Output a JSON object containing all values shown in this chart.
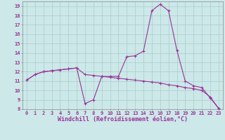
{
  "x": [
    0,
    1,
    2,
    3,
    4,
    5,
    6,
    7,
    8,
    9,
    10,
    11,
    12,
    13,
    14,
    15,
    16,
    17,
    18,
    19,
    20,
    21,
    22,
    23
  ],
  "line1": [
    11.1,
    11.7,
    12.0,
    12.1,
    12.2,
    12.3,
    12.4,
    8.6,
    9.0,
    11.5,
    11.5,
    11.5,
    13.6,
    13.7,
    14.2,
    18.5,
    19.2,
    18.5,
    14.3,
    11.0,
    10.5,
    10.3,
    9.2,
    8.1
  ],
  "line2": [
    11.1,
    11.7,
    12.0,
    12.1,
    12.2,
    12.3,
    12.4,
    11.7,
    11.6,
    11.5,
    11.4,
    11.3,
    11.2,
    11.1,
    11.0,
    10.9,
    10.8,
    10.6,
    10.5,
    10.3,
    10.2,
    10.0,
    9.3,
    8.1
  ],
  "line_color": "#993399",
  "bg_color": "#cce8e8",
  "grid_color": "#aacccc",
  "xlabel": "Windchill (Refroidissement éolien,°C)",
  "ylim_min": 8,
  "ylim_max": 19.5,
  "xlim_min": -0.5,
  "xlim_max": 23.5,
  "yticks": [
    8,
    9,
    10,
    11,
    12,
    13,
    14,
    15,
    16,
    17,
    18,
    19
  ],
  "xticks": [
    0,
    1,
    2,
    3,
    4,
    5,
    6,
    7,
    8,
    9,
    10,
    11,
    12,
    13,
    14,
    15,
    16,
    17,
    18,
    19,
    20,
    21,
    22,
    23
  ],
  "marker": "+",
  "linewidth": 0.8,
  "markersize": 3,
  "tick_fontsize": 5,
  "label_fontsize": 6
}
